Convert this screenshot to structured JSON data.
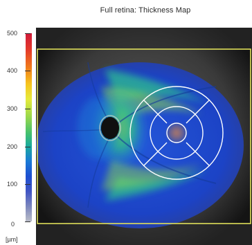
{
  "title": "Full retina: Thickness Map",
  "scale": {
    "ticks": [
      "500",
      "400",
      "300",
      "200",
      "100",
      "0"
    ],
    "unit": "[µm]",
    "colors": [
      "#d01a3a",
      "#f07a1c",
      "#f6c51f",
      "#45c16e",
      "#19aa9f",
      "#1d4fd0",
      "#b9bcc7"
    ]
  },
  "overlay": {
    "frame_color": "#e0e05a",
    "grid_color": "#ffffff"
  }
}
